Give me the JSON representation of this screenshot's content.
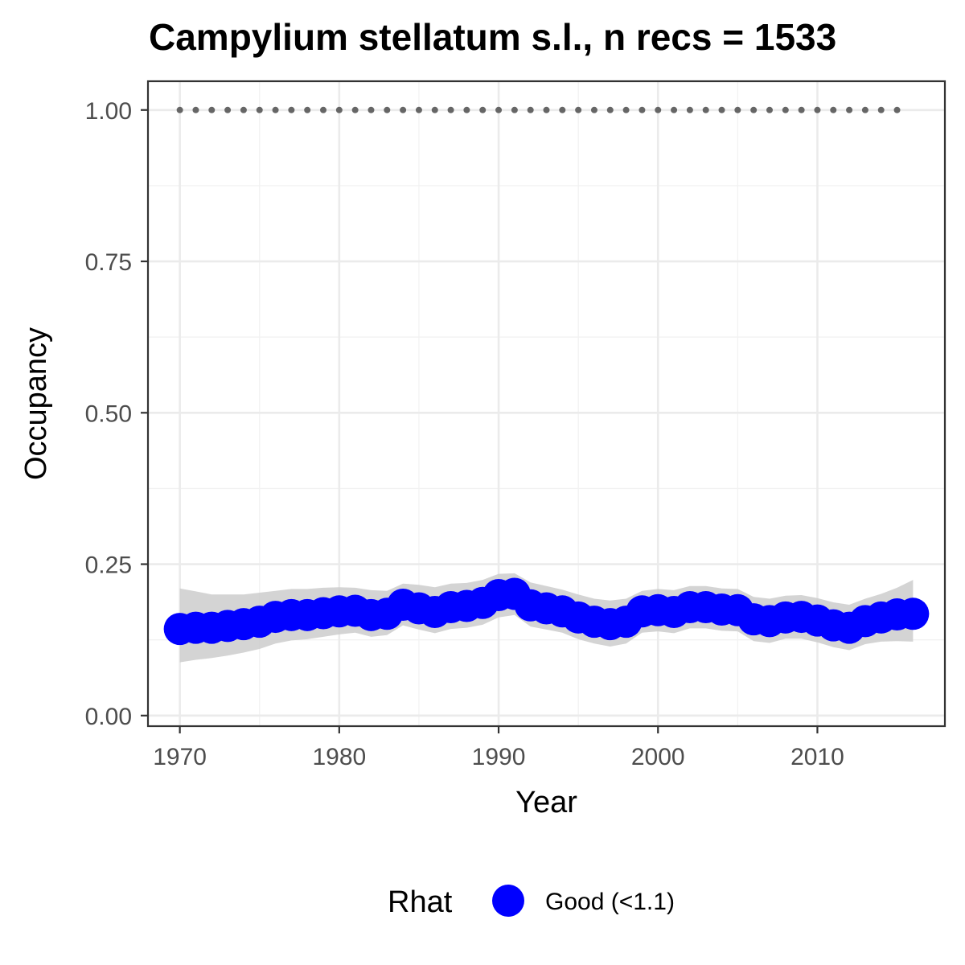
{
  "chart_data": {
    "type": "line",
    "title": "Campylium stellatum s.l., n recs = 1533",
    "xlabel": "Year",
    "ylabel": "Occupancy",
    "xlim": [
      1968,
      2018
    ],
    "ylim": [
      -0.0175,
      1.0475
    ],
    "x_ticks": [
      1970,
      1980,
      1990,
      2000,
      2010
    ],
    "x_tick_labels": [
      "1970",
      "1980",
      "1990",
      "2000",
      "2010"
    ],
    "y_ticks": [
      0.0,
      0.25,
      0.5,
      0.75,
      1.0
    ],
    "y_tick_labels": [
      "0.00",
      "0.25",
      "0.50",
      "0.75",
      "1.00"
    ],
    "grid": true,
    "legend": {
      "title": "Rhat",
      "position": "bottom",
      "entries": [
        {
          "label": "Good (<1.1)",
          "color": "#0000ff"
        }
      ]
    },
    "series": [
      {
        "name": "Good (<1.1)",
        "color": "#0000ff",
        "x": [
          1970,
          1971,
          1972,
          1973,
          1974,
          1975,
          1976,
          1977,
          1978,
          1979,
          1980,
          1981,
          1982,
          1983,
          1984,
          1985,
          1986,
          1987,
          1988,
          1989,
          1990,
          1991,
          1992,
          1993,
          1994,
          1995,
          1996,
          1997,
          1998,
          1999,
          2000,
          2001,
          2002,
          2003,
          2004,
          2005,
          2006,
          2007,
          2008,
          2009,
          2010,
          2011,
          2012,
          2013,
          2014,
          2015,
          2016
        ],
        "values": [
          0.143,
          0.145,
          0.145,
          0.148,
          0.151,
          0.155,
          0.163,
          0.166,
          0.166,
          0.169,
          0.172,
          0.173,
          0.166,
          0.168,
          0.183,
          0.177,
          0.171,
          0.179,
          0.181,
          0.186,
          0.199,
          0.201,
          0.182,
          0.177,
          0.172,
          0.162,
          0.155,
          0.151,
          0.155,
          0.172,
          0.174,
          0.171,
          0.179,
          0.179,
          0.175,
          0.174,
          0.159,
          0.156,
          0.162,
          0.163,
          0.157,
          0.149,
          0.145,
          0.156,
          0.162,
          0.167,
          0.168
        ]
      }
    ],
    "ci_band": {
      "color": "#cccccc",
      "upper": [
        0.21,
        0.205,
        0.2,
        0.2,
        0.2,
        0.203,
        0.206,
        0.209,
        0.209,
        0.211,
        0.212,
        0.211,
        0.207,
        0.206,
        0.218,
        0.216,
        0.212,
        0.218,
        0.219,
        0.224,
        0.234,
        0.235,
        0.22,
        0.214,
        0.208,
        0.2,
        0.193,
        0.19,
        0.193,
        0.206,
        0.209,
        0.207,
        0.214,
        0.214,
        0.21,
        0.209,
        0.196,
        0.193,
        0.198,
        0.199,
        0.194,
        0.187,
        0.183,
        0.193,
        0.201,
        0.211,
        0.224
      ],
      "lower": [
        0.088,
        0.092,
        0.095,
        0.099,
        0.104,
        0.11,
        0.119,
        0.124,
        0.126,
        0.13,
        0.134,
        0.137,
        0.13,
        0.133,
        0.149,
        0.142,
        0.136,
        0.143,
        0.145,
        0.15,
        0.162,
        0.166,
        0.147,
        0.142,
        0.137,
        0.126,
        0.119,
        0.114,
        0.119,
        0.137,
        0.139,
        0.136,
        0.144,
        0.144,
        0.14,
        0.139,
        0.123,
        0.12,
        0.127,
        0.127,
        0.121,
        0.113,
        0.108,
        0.118,
        0.122,
        0.123,
        0.122
      ]
    },
    "reference_line": {
      "style": "dotted",
      "color": "#666666",
      "y": 1.0,
      "x_start": 1970,
      "x_end": 2015
    }
  }
}
